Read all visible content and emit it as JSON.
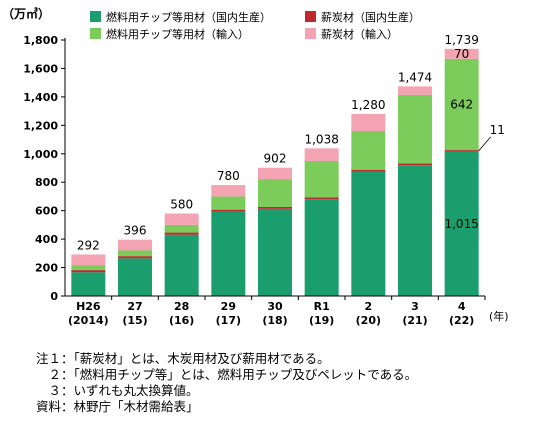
{
  "chart_data": {
    "type": "bar",
    "stacked": true,
    "unit_label": "（万㎥）",
    "x_unit_label": "(年)",
    "categories": [
      {
        "top": "H26",
        "bottom": "(2014)"
      },
      {
        "top": "27",
        "bottom": "(15)"
      },
      {
        "top": "28",
        "bottom": "(16)"
      },
      {
        "top": "29",
        "bottom": "(17)"
      },
      {
        "top": "30",
        "bottom": "(18)"
      },
      {
        "top": "R1",
        "bottom": "(19)"
      },
      {
        "top": "2",
        "bottom": "(20)"
      },
      {
        "top": "3",
        "bottom": "(21)"
      },
      {
        "top": "4",
        "bottom": "(22)"
      }
    ],
    "ylim": [
      0,
      1800
    ],
    "yticks": [
      0,
      200,
      400,
      600,
      800,
      1000,
      1200,
      1400,
      1600,
      1800
    ],
    "ytick_labels": [
      "0",
      "200",
      "400",
      "600",
      "800",
      "1,000",
      "1,200",
      "1,400",
      "1,600",
      "1,800"
    ],
    "series": [
      {
        "name": "燃料用チップ等用材（国内生産）",
        "color": "#1a9e6e",
        "values": [
          167,
          265,
          431,
          593,
          613,
          680,
          875,
          920,
          1015
        ]
      },
      {
        "name": "薪炭材（国内生産）",
        "color": "#c0282d",
        "values": [
          15,
          15,
          15,
          14,
          13,
          13,
          13,
          12,
          11
        ]
      },
      {
        "name": "燃料用チップ等用材（輸入）",
        "color": "#7bcc5a",
        "values": [
          35,
          40,
          54,
          93,
          196,
          256,
          272,
          482,
          642
        ]
      },
      {
        "name": "薪炭材（輸入）",
        "color": "#f4a3b3",
        "values": [
          75,
          76,
          80,
          80,
          80,
          89,
          120,
          60,
          70
        ]
      }
    ],
    "totals": [
      "292",
      "396",
      "580",
      "780",
      "902",
      "1,038",
      "1,280",
      "1,474",
      "1,739"
    ],
    "inner_labels": [
      {
        "category": 8,
        "series": 0,
        "text": "1,015"
      },
      {
        "category": 8,
        "series": 2,
        "text": "642"
      },
      {
        "category": 8,
        "series": 3,
        "text": "70"
      }
    ],
    "callout": {
      "category": 8,
      "text": "11"
    },
    "legend_placement": "top"
  },
  "notes": [
    "注１：「薪炭材」とは、木炭用材及び薪用材である。",
    "　２：「燃料用チップ等」とは、燃料用チップ及びペレットである。",
    "　３：いずれも丸太換算値。",
    "資料：林野庁「木材需給表」"
  ]
}
